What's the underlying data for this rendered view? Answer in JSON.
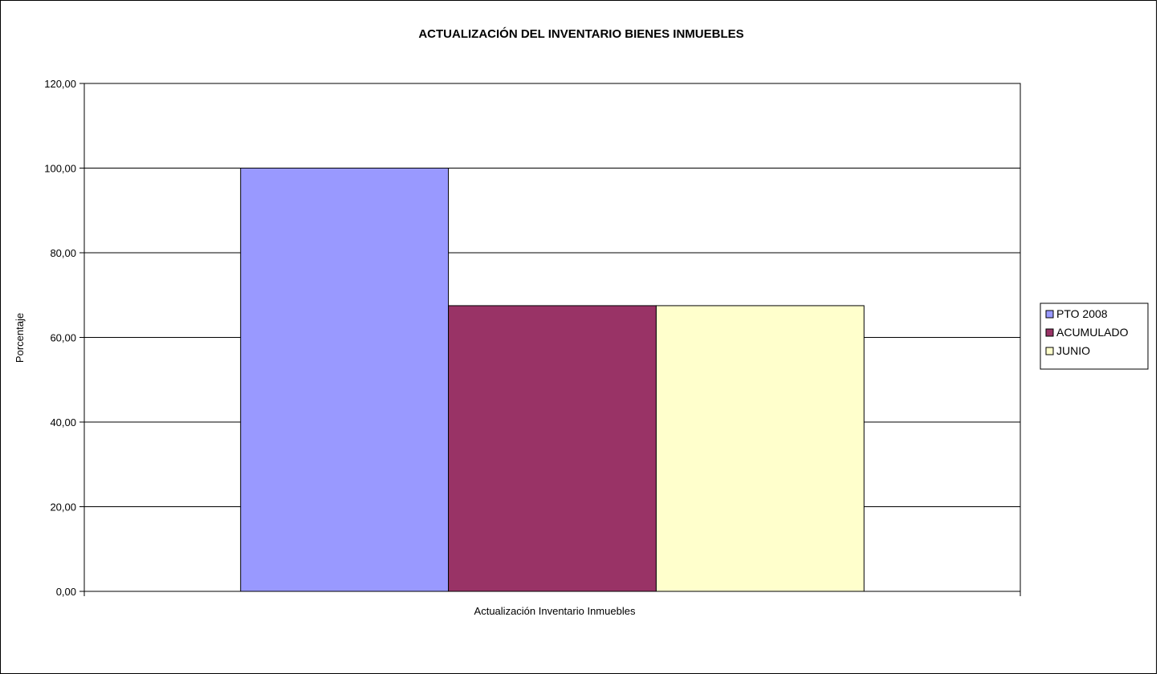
{
  "chart_data": {
    "type": "bar",
    "title": "ACTUALIZACIÓN DEL INVENTARIO BIENES INMUEBLES",
    "xlabel": "",
    "ylabel": "Porcentaje",
    "categories": [
      "Actualización Inventario Inmuebles"
    ],
    "series": [
      {
        "name": "PTO 2008",
        "values": [
          100.0
        ],
        "color": "#9999FF"
      },
      {
        "name": "ACUMULADO",
        "values": [
          67.5
        ],
        "color": "#993366"
      },
      {
        "name": "JUNIO",
        "values": [
          67.5
        ],
        "color": "#FFFFCC"
      }
    ],
    "ylim": [
      0,
      120
    ],
    "yticks": [
      "0,00",
      "20,00",
      "40,00",
      "60,00",
      "80,00",
      "100,00",
      "120,00"
    ],
    "ytick_values": [
      0,
      20,
      40,
      60,
      80,
      100,
      120
    ],
    "grid": true,
    "legend_position": "right"
  }
}
